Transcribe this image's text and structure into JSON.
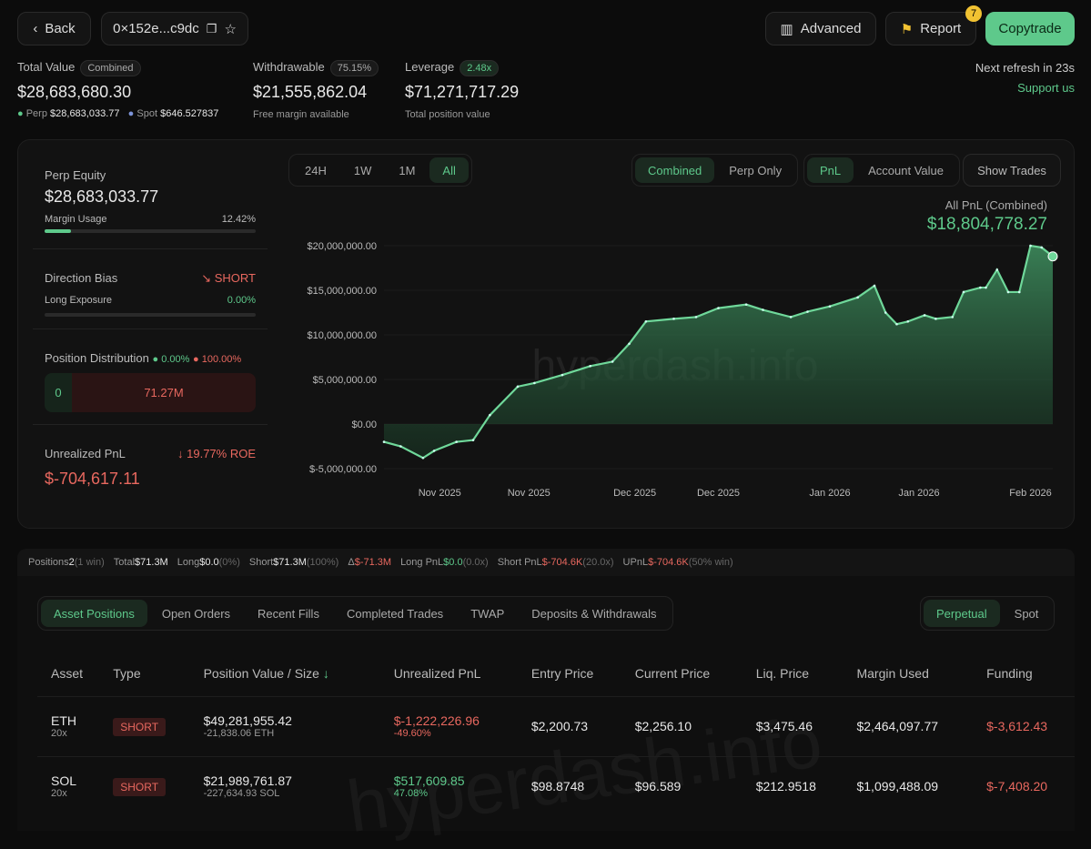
{
  "header": {
    "back": "Back",
    "address": "0×152e...c9dc",
    "advanced": "Advanced",
    "report": "Report",
    "report_badge": "7",
    "copytrade": "Copytrade",
    "next_refresh": "Next refresh in 23s",
    "support": "Support us"
  },
  "summary": {
    "total_label": "Total Value",
    "total_pill": "Combined",
    "total_value": "$28,683,680.30",
    "perp_label": "Perp",
    "perp_value": "$28,683,033.77",
    "spot_label": "Spot",
    "spot_value": "$646.527837",
    "withdraw_label": "Withdrawable",
    "withdraw_pill": "75.15%",
    "withdraw_value": "$21,555,862.04",
    "withdraw_sub": "Free margin available",
    "lev_label": "Leverage",
    "lev_pill": "2.48x",
    "lev_value": "$71,271,717.29",
    "lev_sub": "Total position value"
  },
  "left": {
    "equity_label": "Perp Equity",
    "equity_value": "$28,683,033.77",
    "margin_label": "Margin Usage",
    "margin_value": "12.42%",
    "margin_pct": 12.42,
    "bias_label": "Direction Bias",
    "bias_value": "SHORT",
    "long_exp_label": "Long Exposure",
    "long_exp_value": "0.00%",
    "long_exp_pct": 0,
    "dist_label": "Position Distribution",
    "dist_long": "0.00%",
    "dist_short": "100.00%",
    "dist_left": "0",
    "dist_right": "71.27M",
    "upnl_label": "Unrealized PnL",
    "upnl_roe": "19.77% ROE",
    "upnl_value": "$-704,617.11"
  },
  "chart_controls": {
    "ranges": [
      "24H",
      "1W",
      "1M",
      "All"
    ],
    "active_range": "All",
    "modes": [
      "Combined",
      "Perp Only"
    ],
    "metrics": [
      "PnL",
      "Account Value"
    ],
    "show_trades": "Show Trades",
    "watermark": "hyperdash.info"
  },
  "chart_data": {
    "type": "area",
    "title": "All PnL (Combined)",
    "headline": "$18,804,778.27",
    "ylim": [
      -5000000,
      20000000
    ],
    "yticks": [
      {
        "v": 20000000,
        "label": "$20,000,000.00"
      },
      {
        "v": 15000000,
        "label": "$15,000,000.00"
      },
      {
        "v": 10000000,
        "label": "$10,000,000.00"
      },
      {
        "v": 5000000,
        "label": "$5,000,000.00"
      },
      {
        "v": 0,
        "label": "$0.00"
      },
      {
        "v": -5000000,
        "label": "$-5,000,000.00"
      }
    ],
    "xlim": [
      0,
      120
    ],
    "xticks": [
      {
        "v": 10,
        "label": "Nov 2025"
      },
      {
        "v": 26,
        "label": "Nov 2025"
      },
      {
        "v": 45,
        "label": "Dec 2025"
      },
      {
        "v": 60,
        "label": "Dec 2025"
      },
      {
        "v": 80,
        "label": "Jan 2026"
      },
      {
        "v": 96,
        "label": "Jan 2026"
      },
      {
        "v": 116,
        "label": "Feb 2026"
      }
    ],
    "x": [
      0,
      3,
      7,
      9,
      13,
      16,
      19,
      24,
      27,
      32,
      37,
      41,
      44,
      47,
      52,
      56,
      60,
      65,
      68,
      73,
      76,
      80,
      85,
      88,
      90,
      92,
      94,
      97,
      99,
      102,
      104,
      107,
      108,
      110,
      112,
      114,
      116,
      118,
      120
    ],
    "y": [
      -2000000,
      -2500000,
      -3800000,
      -3000000,
      -2000000,
      -1800000,
      1000000,
      4200000,
      4600000,
      5500000,
      6500000,
      7000000,
      9000000,
      11500000,
      11800000,
      12000000,
      13000000,
      13400000,
      12800000,
      12000000,
      12600000,
      13200000,
      14200000,
      15500000,
      12500000,
      11200000,
      11500000,
      12200000,
      11800000,
      12000000,
      14800000,
      15300000,
      15300000,
      17300000,
      14800000,
      14800000,
      20000000,
      19800000,
      18804778
    ]
  },
  "stats": [
    {
      "k": "Positions",
      "v": "2",
      "n": "(1 win)",
      "c": ""
    },
    {
      "k": "Total",
      "v": "$71.3M",
      "n": "",
      "c": ""
    },
    {
      "k": "Long",
      "v": "$0.0",
      "n": "(0%)",
      "c": ""
    },
    {
      "k": "Short",
      "v": "$71.3M",
      "n": "(100%)",
      "c": ""
    },
    {
      "k": "Δ",
      "v": "$-71.3M",
      "n": "",
      "c": "red"
    },
    {
      "k": "Long PnL",
      "v": "$0.0",
      "n": "(0.0x)",
      "c": "green"
    },
    {
      "k": "Short PnL",
      "v": "$-704.6K",
      "n": "(20.0x)",
      "c": "red"
    },
    {
      "k": "UPnL",
      "v": "$-704.6K",
      "n": "(50% win)",
      "c": "red"
    }
  ],
  "tabs": [
    "Asset Positions",
    "Open Orders",
    "Recent Fills",
    "Completed Trades",
    "TWAP",
    "Deposits & Withdrawals"
  ],
  "market_tabs": [
    "Perpetual",
    "Spot"
  ],
  "table": {
    "headers": [
      "Asset",
      "Type",
      "Position Value / Size",
      "Unrealized PnL",
      "Entry Price",
      "Current Price",
      "Liq. Price",
      "Margin Used",
      "Funding"
    ],
    "rows": [
      {
        "asset": "ETH",
        "lev": "20x",
        "type": "SHORT",
        "value": "$49,281,955.42",
        "size": "-21,838.06 ETH",
        "pnl": "$-1,222,226.96",
        "pnl_pct": "-49.60%",
        "pnl_c": "red",
        "entry": "$2,200.73",
        "current": "$2,256.10",
        "liq": "$3,475.46",
        "margin": "$2,464,097.77",
        "funding": "$-3,612.43"
      },
      {
        "asset": "SOL",
        "lev": "20x",
        "type": "SHORT",
        "value": "$21,989,761.87",
        "size": "-227,634.93 SOL",
        "pnl": "$517,609.85",
        "pnl_pct": "47.08%",
        "pnl_c": "green",
        "entry": "$98.8748",
        "current": "$96.589",
        "liq": "$212.9518",
        "margin": "$1,099,488.09",
        "funding": "$-7,408.20"
      }
    ]
  }
}
